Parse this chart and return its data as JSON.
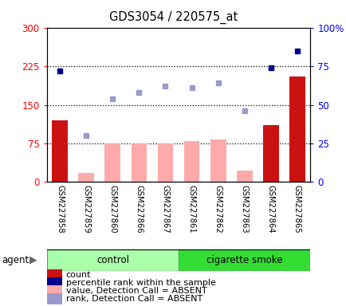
{
  "title": "GDS3054 / 220575_at",
  "samples": [
    "GSM227858",
    "GSM227859",
    "GSM227860",
    "GSM227866",
    "GSM227867",
    "GSM227861",
    "GSM227862",
    "GSM227863",
    "GSM227864",
    "GSM227865"
  ],
  "count_absent": [
    false,
    true,
    true,
    true,
    true,
    true,
    true,
    true,
    false,
    false
  ],
  "count_values": [
    120,
    0,
    0,
    0,
    0,
    0,
    0,
    0,
    110,
    205
  ],
  "absent_bar_values": [
    0,
    17,
    75,
    75,
    75,
    80,
    83,
    22,
    0,
    0
  ],
  "rank_values_pct": [
    72,
    30,
    54,
    58,
    62,
    61,
    64,
    46,
    74,
    85
  ],
  "rank_present": [
    true,
    false,
    false,
    false,
    false,
    false,
    false,
    false,
    true,
    true
  ],
  "left_ylim": [
    0,
    300
  ],
  "right_ylim": [
    0,
    100
  ],
  "left_yticks": [
    0,
    75,
    150,
    225,
    300
  ],
  "right_yticks": [
    0,
    25,
    50,
    75,
    100
  ],
  "right_yticklabels": [
    "0",
    "25",
    "50",
    "75",
    "100%"
  ],
  "hlines": [
    75,
    150,
    225
  ],
  "bar_color_present": "#cc1111",
  "bar_color_absent": "#ffaaaa",
  "dot_color_present": "#00008b",
  "dot_color_absent": "#9999cc",
  "legend_items": [
    {
      "label": "count",
      "color": "#cc1111"
    },
    {
      "label": "percentile rank within the sample",
      "color": "#00008b"
    },
    {
      "label": "value, Detection Call = ABSENT",
      "color": "#ffaaaa"
    },
    {
      "label": "rank, Detection Call = ABSENT",
      "color": "#9999cc"
    }
  ],
  "group_ctrl_indices": [
    0,
    1,
    2,
    3,
    4
  ],
  "group_smoke_indices": [
    5,
    6,
    7,
    8,
    9
  ],
  "group_ctrl_label": "control",
  "group_smoke_label": "cigarette smoke",
  "group_ctrl_color": "#aaffaa",
  "group_smoke_color": "#33dd33",
  "tick_area_color": "#cccccc",
  "agent_label": "agent"
}
